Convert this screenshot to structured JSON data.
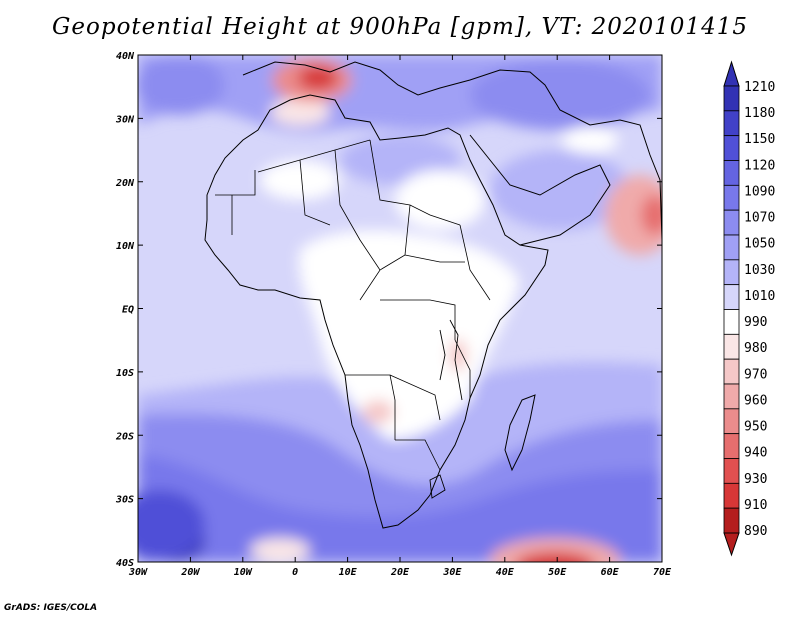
{
  "title": "Geopotential Height at 900hPa [gpm], VT: 2020101415",
  "credit": "GrADS: IGES/COLA",
  "colors": {
    "base": "#d6d6fa",
    "neutral": "#ffffff",
    "scale": [
      "#3232b4",
      "#4141c8",
      "#5050d7",
      "#6464e1",
      "#7878eb",
      "#8c8cf0",
      "#a0a0f5",
      "#b4b4f8",
      "#d6d6fa",
      "#ffffff",
      "#fae6e6",
      "#f5c8c8",
      "#f0aaaa",
      "#eb8c8c",
      "#e66e6e",
      "#e15050",
      "#d73737",
      "#b41e1e"
    ]
  },
  "map": {
    "lon_labels": [
      "30W",
      "20W",
      "10W",
      "0",
      "10E",
      "20E",
      "30E",
      "40E",
      "50E",
      "60E",
      "70E"
    ],
    "lat_labels": [
      "40N",
      "30N",
      "20N",
      "10N",
      "EQ",
      "10S",
      "20S",
      "30S",
      "40S"
    ]
  },
  "colorbar": {
    "labels": [
      "1210",
      "1180",
      "1150",
      "1120",
      "1090",
      "1070",
      "1050",
      "1030",
      "1010",
      "990",
      "980",
      "970",
      "960",
      "950",
      "940",
      "930",
      "910",
      "890"
    ]
  }
}
